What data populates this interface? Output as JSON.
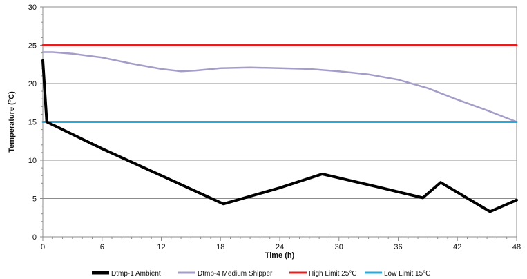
{
  "chart_data": {
    "type": "line",
    "xlabel": "Time (h)",
    "ylabel": "Temperature (°C)",
    "xlim": [
      0,
      48
    ],
    "ylim": [
      0,
      30
    ],
    "xticks": [
      0,
      6,
      12,
      18,
      24,
      30,
      36,
      42,
      48
    ],
    "yticks": [
      0,
      5,
      10,
      15,
      20,
      25,
      30
    ],
    "grid": "horizontal",
    "legend_position": "bottom",
    "series": [
      {
        "name": "Dtmp-1 Ambient",
        "color": "#000000",
        "points": [
          [
            0,
            23
          ],
          [
            0.4,
            15
          ],
          [
            6,
            11.5
          ],
          [
            12,
            8
          ],
          [
            18.3,
            4.3
          ],
          [
            24,
            6.4
          ],
          [
            28.3,
            8.2
          ],
          [
            34,
            6.5
          ],
          [
            38.5,
            5.1
          ],
          [
            40.3,
            7.1
          ],
          [
            45.3,
            3.3
          ],
          [
            48,
            4.8
          ]
        ]
      },
      {
        "name": "Dtmp-4 Medium Shipper",
        "color": "#a59dc8",
        "points": [
          [
            0,
            24.1
          ],
          [
            1,
            24.1
          ],
          [
            3,
            23.9
          ],
          [
            6,
            23.4
          ],
          [
            9,
            22.6
          ],
          [
            12,
            21.9
          ],
          [
            14,
            21.6
          ],
          [
            15.5,
            21.7
          ],
          [
            18,
            22
          ],
          [
            21,
            22.1
          ],
          [
            24,
            22
          ],
          [
            27,
            21.9
          ],
          [
            30,
            21.6
          ],
          [
            33,
            21.2
          ],
          [
            36,
            20.5
          ],
          [
            39,
            19.4
          ],
          [
            42,
            17.9
          ],
          [
            45,
            16.5
          ],
          [
            48,
            15
          ]
        ]
      },
      {
        "name": "High Limit 25°C",
        "color": "#e02020",
        "points": [
          [
            0,
            25
          ],
          [
            48,
            25
          ]
        ]
      },
      {
        "name": "Low Limit 15°C",
        "color": "#29a9d9",
        "points": [
          [
            0,
            15
          ],
          [
            48,
            15
          ]
        ]
      }
    ]
  }
}
